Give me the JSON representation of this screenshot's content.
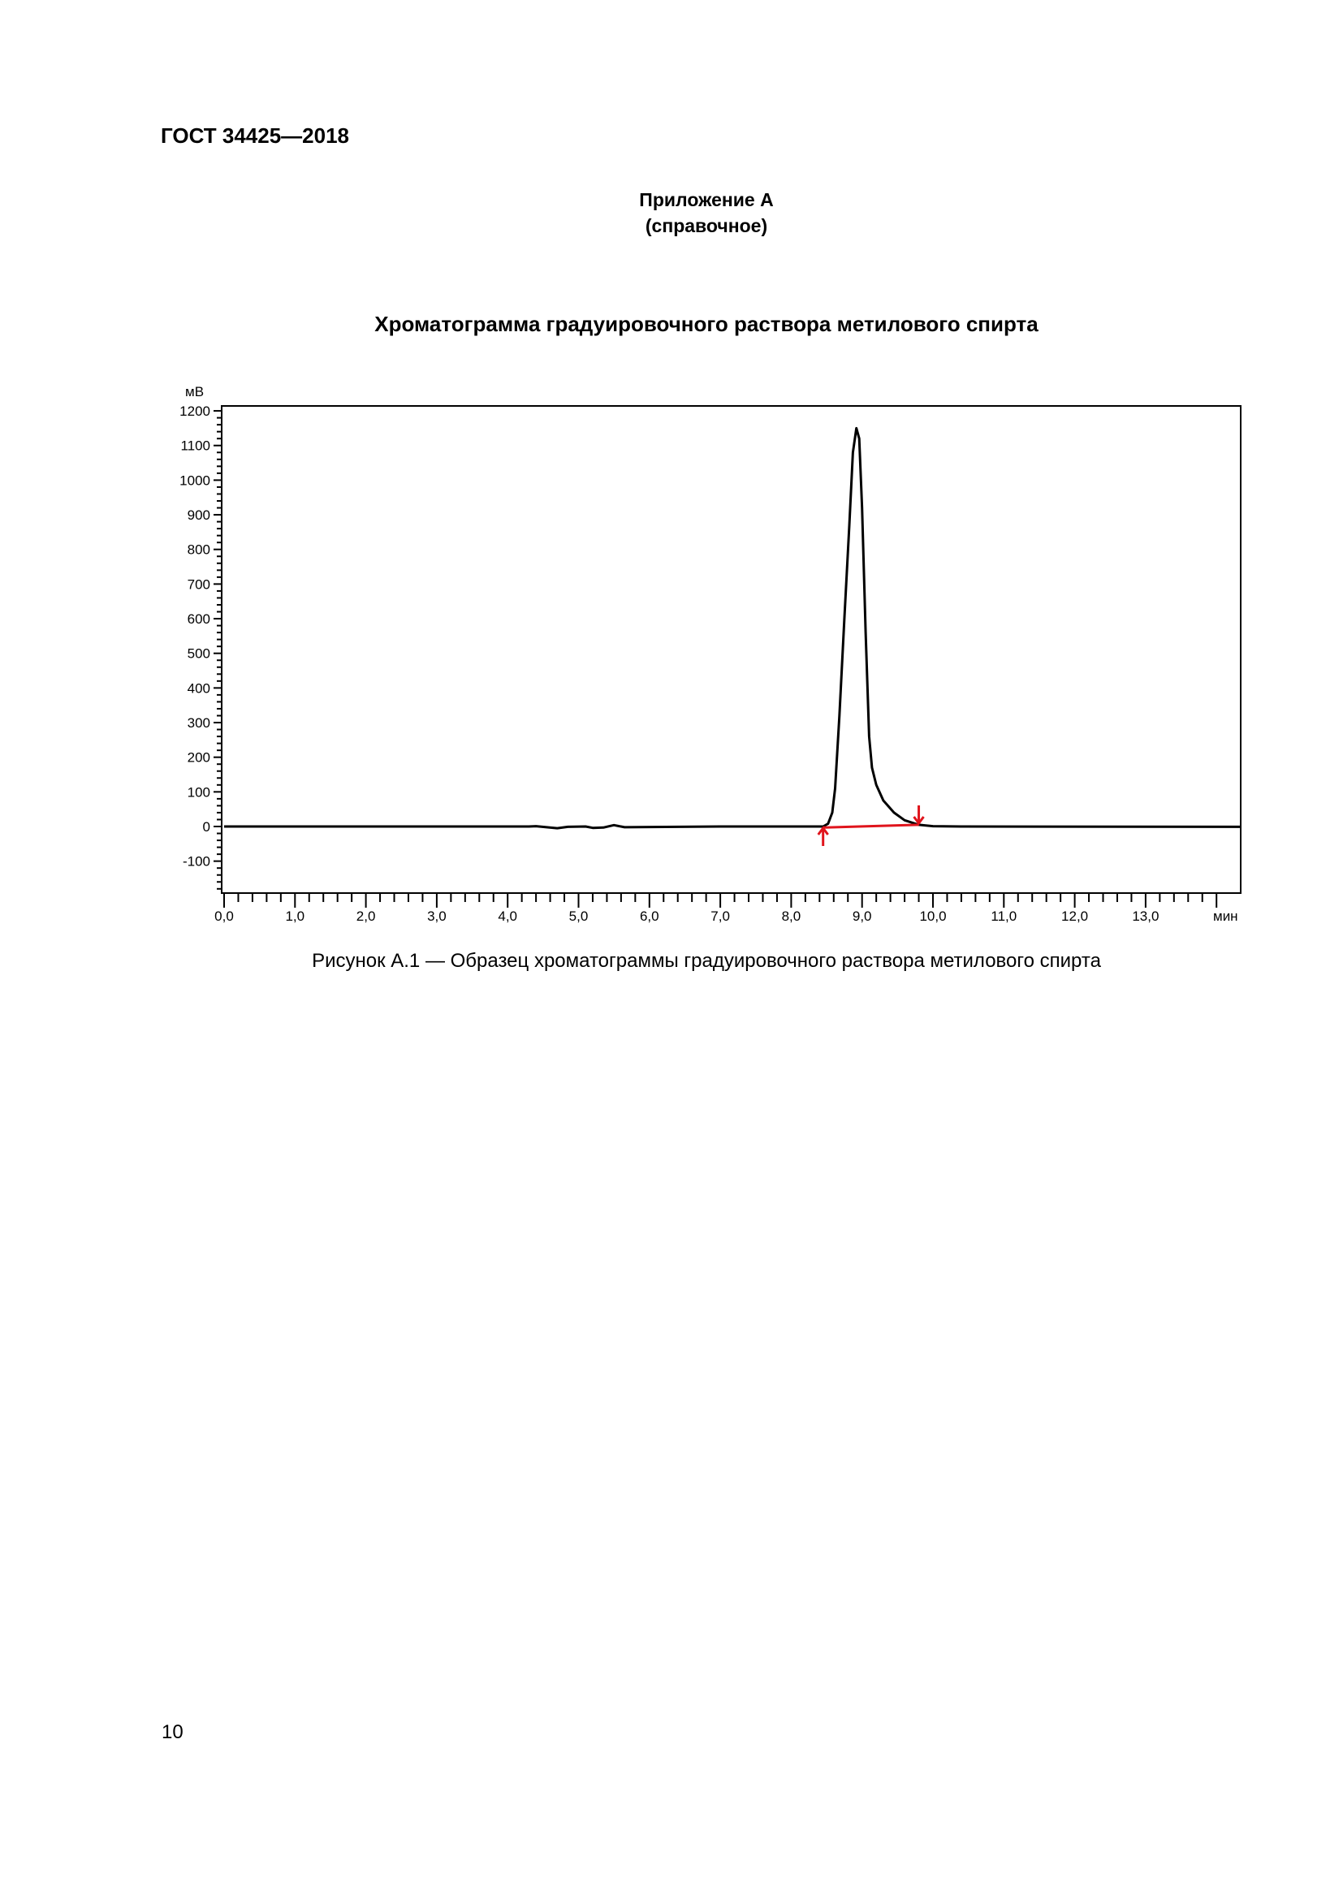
{
  "header": {
    "standard": "ГОСТ 34425—2018"
  },
  "appendix": {
    "title": "Приложение А",
    "subtitle": "(справочное)"
  },
  "figure_title": "Хроматограмма градуировочного раствора метилового спирта",
  "caption": "Рисунок А.1 — Образец хроматограммы градуировочного раствора метилового спирта",
  "page_number": "10",
  "chart_data": {
    "type": "line",
    "ylabel": "мВ",
    "xlabel": "мин",
    "xlim": [
      0,
      14.35
    ],
    "ylim": [
      -190,
      1215
    ],
    "x_ticks": [
      "0,0",
      "1,0",
      "2,0",
      "3,0",
      "4,0",
      "5,0",
      "6,0",
      "7,0",
      "8,0",
      "9,0",
      "10,0",
      "11,0",
      "12,0",
      "13,0"
    ],
    "x_tick_values": [
      0,
      1,
      2,
      3,
      4,
      5,
      6,
      7,
      8,
      9,
      10,
      11,
      12,
      13
    ],
    "y_ticks": [
      "1200",
      "1100",
      "1000",
      "900",
      "800",
      "700",
      "600",
      "500",
      "400",
      "300",
      "200",
      "100",
      "0",
      "-100"
    ],
    "y_tick_values": [
      1200,
      1100,
      1000,
      900,
      800,
      700,
      600,
      500,
      400,
      300,
      200,
      100,
      0,
      -100
    ],
    "grid": false,
    "series": [
      {
        "color": "#000000",
        "points": [
          [
            0,
            0
          ],
          [
            4.3,
            0
          ],
          [
            4.4,
            1
          ],
          [
            4.55,
            -2
          ],
          [
            4.7,
            -5
          ],
          [
            4.85,
            -1
          ],
          [
            5.1,
            0
          ],
          [
            5.2,
            -4
          ],
          [
            5.35,
            -3
          ],
          [
            5.5,
            4
          ],
          [
            5.65,
            -2
          ],
          [
            7,
            0
          ],
          [
            8.45,
            0
          ],
          [
            8.52,
            8
          ],
          [
            8.58,
            40
          ],
          [
            8.62,
            110
          ],
          [
            8.68,
            320
          ],
          [
            8.75,
            600
          ],
          [
            8.82,
            870
          ],
          [
            8.87,
            1080
          ],
          [
            8.92,
            1150
          ],
          [
            8.96,
            1120
          ],
          [
            9.0,
            920
          ],
          [
            9.05,
            560
          ],
          [
            9.1,
            260
          ],
          [
            9.14,
            170
          ],
          [
            9.2,
            120
          ],
          [
            9.3,
            75
          ],
          [
            9.45,
            40
          ],
          [
            9.6,
            18
          ],
          [
            9.8,
            5
          ],
          [
            10.0,
            1
          ],
          [
            10.4,
            0
          ],
          [
            14.35,
            -1
          ]
        ]
      }
    ],
    "annotations": {
      "baseline": {
        "color": "#e0141c",
        "from": [
          8.45,
          -3
        ],
        "to": [
          9.8,
          5
        ]
      },
      "peak_start_marker": {
        "x": 8.45,
        "direction": "up",
        "color": "#e0141c"
      },
      "peak_end_marker": {
        "x": 9.8,
        "direction": "down",
        "color": "#e0141c"
      }
    }
  }
}
